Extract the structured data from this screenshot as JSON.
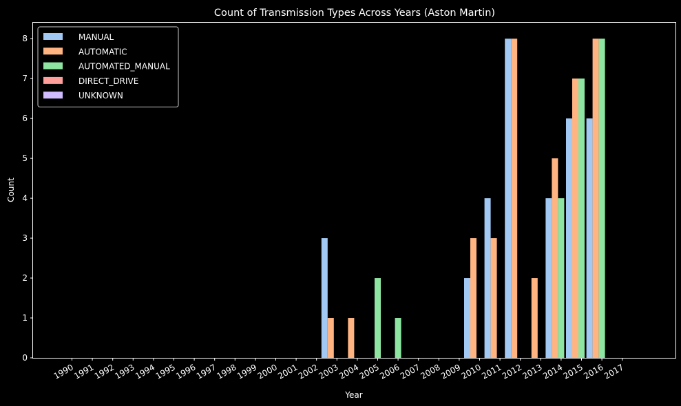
{
  "chart_data": {
    "type": "bar",
    "title": "Count of Transmission Types Across Years (Aston Martin)",
    "xlabel": "Year",
    "ylabel": "Count",
    "ylim": [
      0,
      8.4
    ],
    "yticks": [
      0,
      1,
      2,
      3,
      4,
      5,
      6,
      7,
      8
    ],
    "grid": false,
    "legend_position": "top-left",
    "categories": [
      "1990",
      "1991",
      "1992",
      "1993",
      "1994",
      "1995",
      "1996",
      "1997",
      "1998",
      "1999",
      "2000",
      "2001",
      "2002",
      "2003",
      "2004",
      "2005",
      "2006",
      "2007",
      "2008",
      "2009",
      "2010",
      "2011",
      "2012",
      "2013",
      "2014",
      "2015",
      "2016",
      "2017"
    ],
    "series": [
      {
        "name": "MANUAL",
        "color": "#a1c9f4",
        "values": [
          0,
          0,
          0,
          0,
          0,
          0,
          0,
          0,
          0,
          0,
          0,
          0,
          0,
          3,
          0,
          0,
          0,
          0,
          0,
          0,
          2,
          4,
          8,
          0,
          4,
          6,
          6,
          0
        ]
      },
      {
        "name": "AUTOMATIC",
        "color": "#ffb482",
        "values": [
          0,
          0,
          0,
          0,
          0,
          0,
          0,
          0,
          0,
          0,
          0,
          0,
          0,
          1,
          1,
          0,
          0,
          0,
          0,
          0,
          3,
          3,
          8,
          2,
          5,
          7,
          8,
          0
        ]
      },
      {
        "name": "AUTOMATED_MANUAL",
        "color": "#8de5a1",
        "values": [
          0,
          0,
          0,
          0,
          0,
          0,
          0,
          0,
          0,
          0,
          0,
          0,
          0,
          0,
          0,
          2,
          1,
          0,
          0,
          0,
          0,
          0,
          0,
          0,
          4,
          7,
          8,
          0
        ]
      },
      {
        "name": "DIRECT_DRIVE",
        "color": "#ff9f9b",
        "values": [
          0,
          0,
          0,
          0,
          0,
          0,
          0,
          0,
          0,
          0,
          0,
          0,
          0,
          0,
          0,
          0,
          0,
          0,
          0,
          0,
          0,
          0,
          0,
          0,
          0,
          0,
          0,
          0
        ]
      },
      {
        "name": "UNKNOWN",
        "color": "#d0bbff",
        "values": [
          0,
          0,
          0,
          0,
          0,
          0,
          0,
          0,
          0,
          0,
          0,
          0,
          0,
          0,
          0,
          0,
          0,
          0,
          0,
          0,
          0,
          0,
          0,
          0,
          0,
          0,
          0,
          0
        ]
      }
    ]
  }
}
